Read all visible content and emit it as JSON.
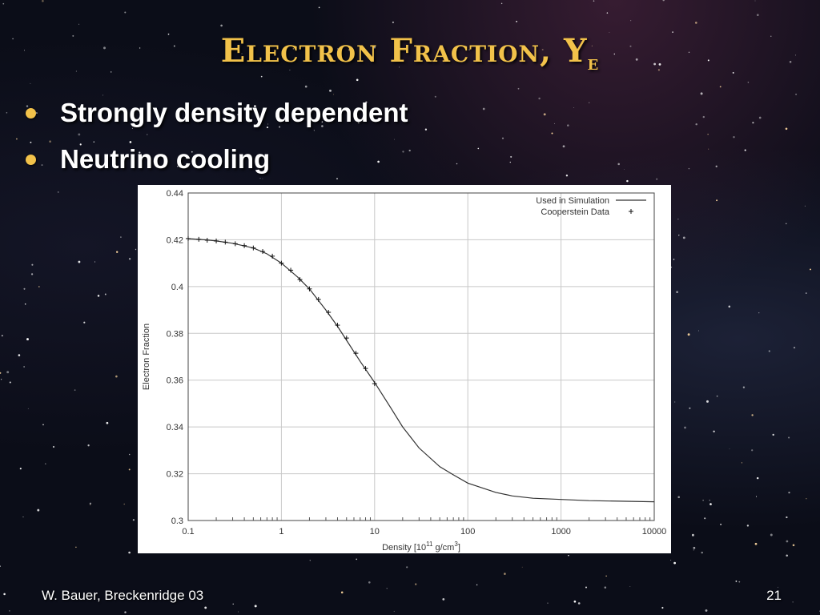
{
  "slide": {
    "title_main": "Electron Fraction, Y",
    "title_sub": "e",
    "bullets": [
      "Strongly density dependent",
      "Neutrino cooling"
    ],
    "footer": "W. Bauer, Breckenridge 03",
    "page_number": "21",
    "accent_color": "#f2c24a"
  },
  "chart_data": {
    "type": "line",
    "xlabel": "Density [10",
    "xlabel_sup": "11",
    "xlabel_unit": " g/cm",
    "xlabel_unit_sup": "3",
    "xlabel_end": "]",
    "ylabel": "Electron Fraction",
    "x_scale": "log",
    "xlim": [
      0.1,
      10000
    ],
    "ylim": [
      0.3,
      0.44
    ],
    "x_ticks": [
      "0.1",
      "1",
      "10",
      "100",
      "1000",
      "10000"
    ],
    "y_ticks": [
      "0.3",
      "0.32",
      "0.34",
      "0.36",
      "0.38",
      "0.4",
      "0.42",
      "0.44"
    ],
    "grid": true,
    "legend_position": "top-right",
    "series": [
      {
        "name": "Used in Simulation",
        "style": "line",
        "x": [
          0.1,
          0.15,
          0.2,
          0.3,
          0.5,
          0.7,
          1,
          1.5,
          2,
          3,
          4,
          5,
          7,
          10,
          15,
          20,
          30,
          50,
          70,
          100,
          200,
          300,
          500,
          1000,
          2000,
          5000,
          10000
        ],
        "y": [
          0.4205,
          0.42,
          0.4195,
          0.4185,
          0.4165,
          0.414,
          0.41,
          0.404,
          0.399,
          0.39,
          0.383,
          0.377,
          0.368,
          0.359,
          0.348,
          0.34,
          0.331,
          0.323,
          0.3195,
          0.316,
          0.312,
          0.3105,
          0.3095,
          0.309,
          0.3085,
          0.3082,
          0.308
        ]
      },
      {
        "name": "Cooperstein Data",
        "style": "points",
        "marker": "+",
        "x": [
          0.1,
          0.13,
          0.16,
          0.2,
          0.25,
          0.32,
          0.4,
          0.5,
          0.63,
          0.8,
          1,
          1.26,
          1.58,
          2,
          2.5,
          3.2,
          4,
          5,
          6.3,
          8,
          10
        ],
        "y": [
          0.4205,
          0.4202,
          0.4198,
          0.4195,
          0.419,
          0.4183,
          0.4175,
          0.4165,
          0.415,
          0.413,
          0.41,
          0.407,
          0.403,
          0.399,
          0.3945,
          0.389,
          0.3835,
          0.378,
          0.3715,
          0.365,
          0.3585
        ]
      }
    ]
  }
}
